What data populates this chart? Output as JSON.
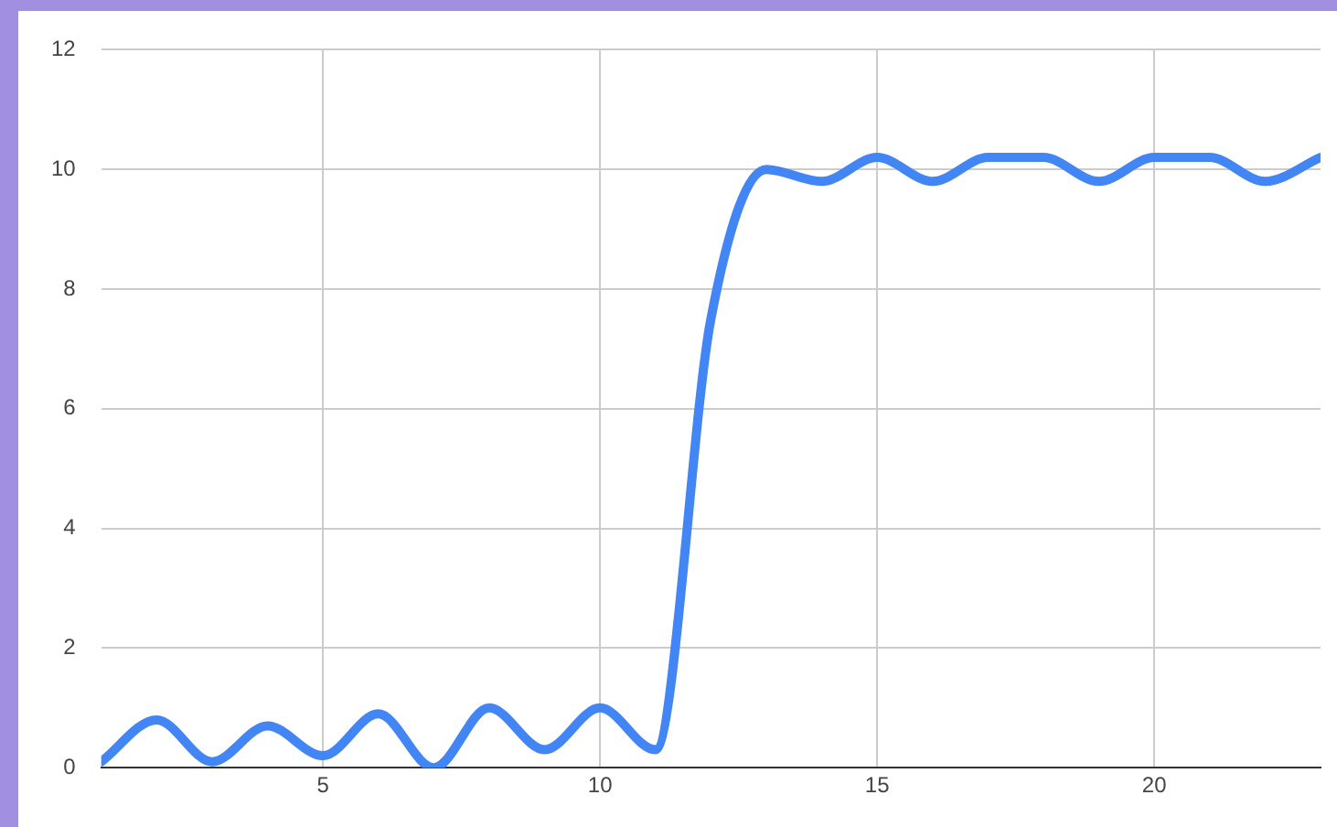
{
  "chart_data": {
    "type": "line",
    "x": [
      1,
      2,
      3,
      4,
      5,
      6,
      7,
      8,
      9,
      10,
      11,
      12,
      13,
      14,
      15,
      16,
      17,
      18,
      19,
      20,
      21,
      22,
      23
    ],
    "series": [
      {
        "color": "#4285f4",
        "values": [
          0.1,
          0.8,
          0.1,
          0.7,
          0.2,
          0.9,
          0.0,
          1.0,
          0.3,
          1.0,
          0.3,
          7.5,
          10.0,
          9.8,
          10.2,
          9.8,
          10.2,
          10.2,
          9.8,
          10.2,
          10.2,
          9.8,
          10.2
        ]
      }
    ],
    "xlim": [
      1,
      23
    ],
    "xticks": [
      5,
      10,
      15,
      20
    ],
    "ylim": [
      0,
      12
    ],
    "yticks": [
      0,
      2,
      4,
      6,
      8,
      10,
      12
    ],
    "grid": true,
    "legend": false,
    "marker": "none",
    "line_style": "solid"
  }
}
